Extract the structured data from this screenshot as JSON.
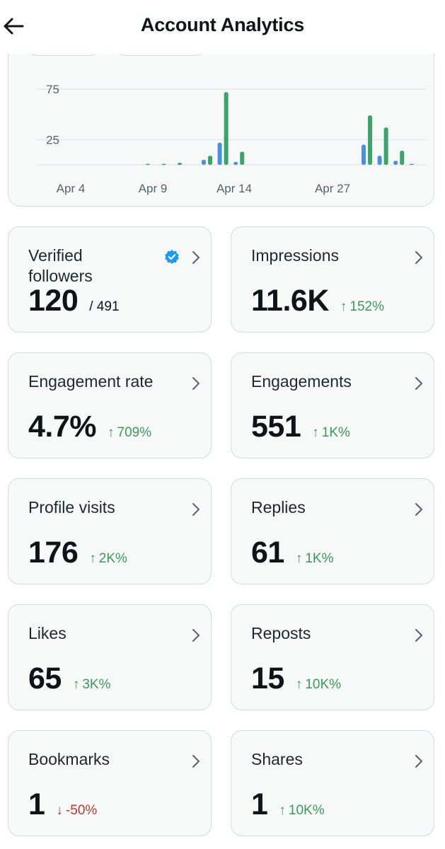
{
  "header": {
    "title": "Account Analytics",
    "back_icon": "back-arrow-icon"
  },
  "chart_data": {
    "type": "bar",
    "x_tick_labels": [
      "Apr 4",
      "Apr 9",
      "Apr 14",
      "Apr 27"
    ],
    "y_tick_labels": [
      "75",
      "25"
    ],
    "ylim": [
      0,
      75
    ],
    "grid": true,
    "series_colors": {
      "blue": "#4a90e2",
      "green": "#3aa46a"
    },
    "bars": [
      {
        "slot": 3,
        "series": "green",
        "value": 1
      },
      {
        "slot": 5,
        "series": "green",
        "value": 1
      },
      {
        "slot": 7,
        "series": "green",
        "value": 2
      },
      {
        "slot": 10,
        "series": "blue",
        "value": 5
      },
      {
        "slot": 10.8,
        "series": "green",
        "value": 9
      },
      {
        "slot": 12,
        "series": "blue",
        "value": 22
      },
      {
        "slot": 12.8,
        "series": "green",
        "value": 72
      },
      {
        "slot": 14,
        "series": "blue",
        "value": 3
      },
      {
        "slot": 14.8,
        "series": "green",
        "value": 13
      },
      {
        "slot": 30,
        "series": "blue",
        "value": 20
      },
      {
        "slot": 30.8,
        "series": "green",
        "value": 49
      },
      {
        "slot": 32,
        "series": "blue",
        "value": 9
      },
      {
        "slot": 32.8,
        "series": "green",
        "value": 37
      },
      {
        "slot": 34,
        "series": "blue",
        "value": 4
      },
      {
        "slot": 34.8,
        "series": "green",
        "value": 14
      },
      {
        "slot": 36,
        "series": "blue",
        "value": 1
      }
    ]
  },
  "cards": [
    {
      "label": "Verified followers",
      "value": "120",
      "suffix": "/ 491",
      "change": "",
      "direction": "none",
      "verified": true
    },
    {
      "label": "Impressions",
      "value": "11.6K",
      "suffix": "",
      "change": "152%",
      "direction": "up"
    },
    {
      "label": "Engagement rate",
      "value": "4.7%",
      "suffix": "",
      "change": "709%",
      "direction": "up"
    },
    {
      "label": "Engagements",
      "value": "551",
      "suffix": "",
      "change": "1K%",
      "direction": "up"
    },
    {
      "label": "Profile visits",
      "value": "176",
      "suffix": "",
      "change": "2K%",
      "direction": "up"
    },
    {
      "label": "Replies",
      "value": "61",
      "suffix": "",
      "change": "1K%",
      "direction": "up"
    },
    {
      "label": "Likes",
      "value": "65",
      "suffix": "",
      "change": "3K%",
      "direction": "up"
    },
    {
      "label": "Reposts",
      "value": "15",
      "suffix": "",
      "change": "10K%",
      "direction": "up"
    },
    {
      "label": "Bookmarks",
      "value": "1",
      "suffix": "",
      "change": "-50%",
      "direction": "down"
    },
    {
      "label": "Shares",
      "value": "1",
      "suffix": "",
      "change": "10K%",
      "direction": "up"
    }
  ],
  "colors": {
    "up": "#3a9a5b",
    "down": "#c0392b",
    "verified": "#1d9bf0"
  }
}
